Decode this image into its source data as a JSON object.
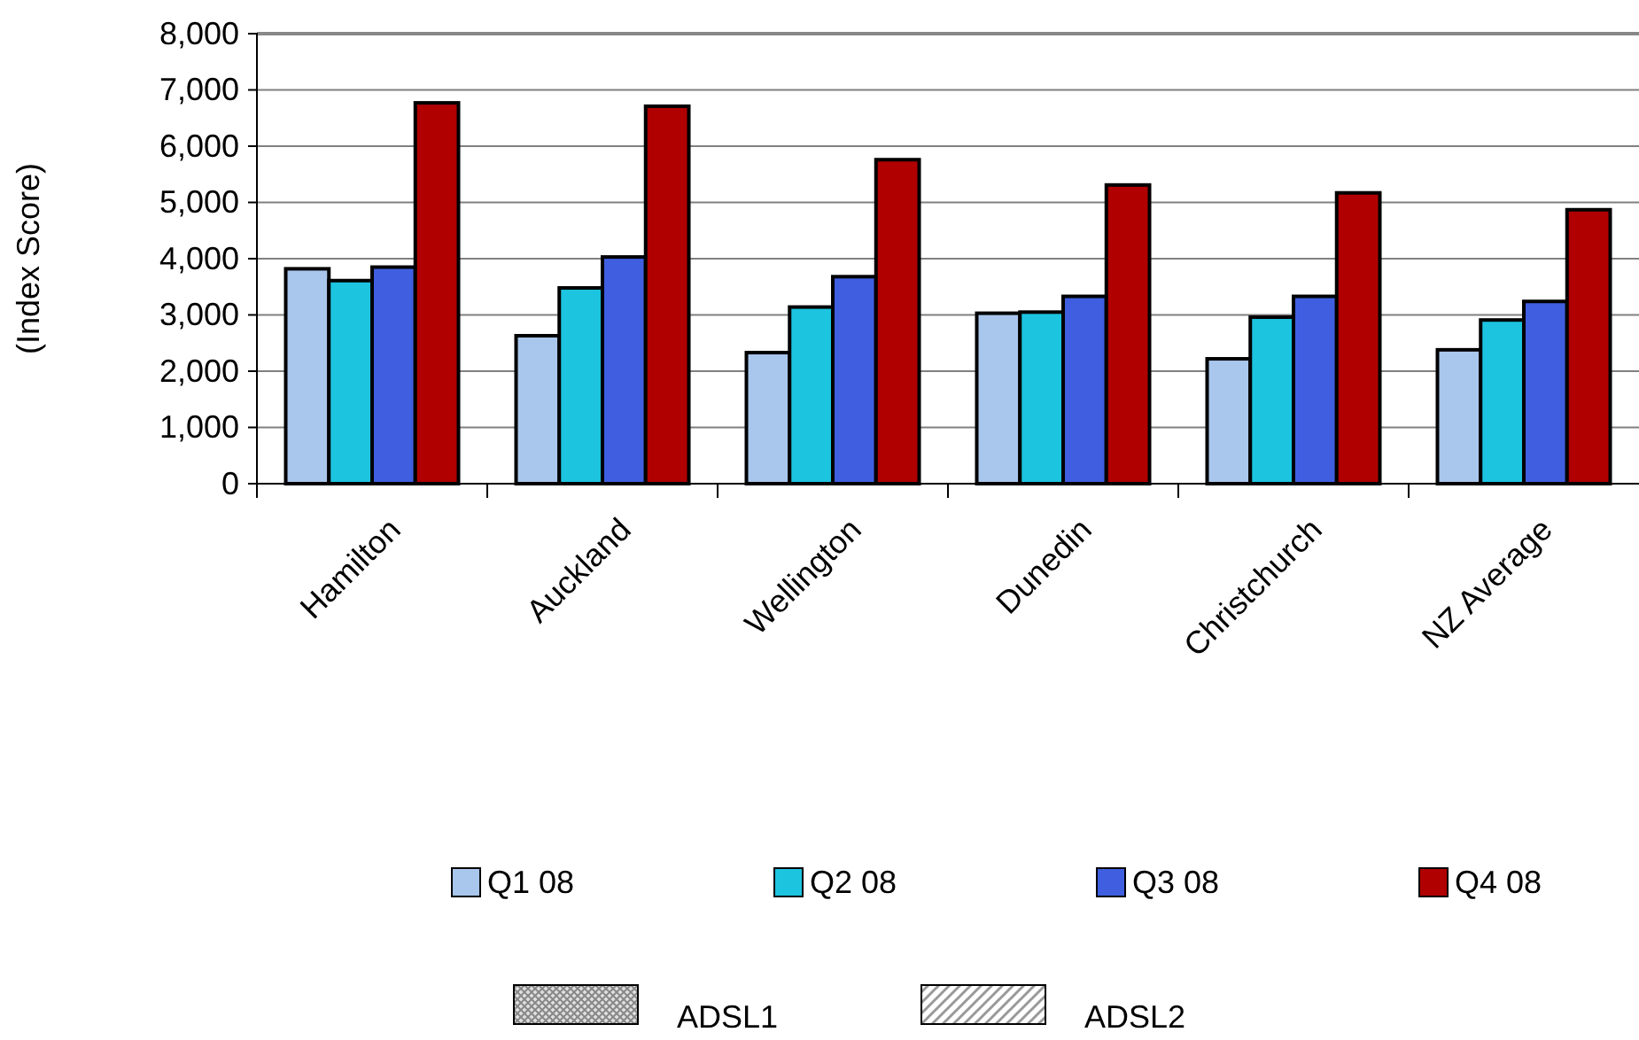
{
  "chart_data": {
    "type": "bar",
    "ylabel": "(Index Score)",
    "categories": [
      "Hamilton",
      "Auckland",
      "Wellington",
      "Dunedin",
      "Christchurch",
      "NZ Average"
    ],
    "series": [
      {
        "name": "Q1 08",
        "color": "#a9c6ec",
        "values": [
          3820,
          2630,
          2330,
          3030,
          2220,
          2380
        ]
      },
      {
        "name": "Q2 08",
        "color": "#1cc4e0",
        "values": [
          3610,
          3480,
          3140,
          3050,
          2960,
          2910
        ]
      },
      {
        "name": "Q3 08",
        "color": "#3f5fe0",
        "values": [
          3850,
          4030,
          3680,
          3330,
          3330,
          3240
        ]
      },
      {
        "name": "Q4 08",
        "color": "#b00000",
        "values": [
          6770,
          6710,
          5760,
          5310,
          5170,
          4870
        ]
      }
    ],
    "ylim": [
      0,
      8000
    ],
    "yticks": [
      {
        "value": 0,
        "label": "0"
      },
      {
        "value": 1000,
        "label": "1,000"
      },
      {
        "value": 2000,
        "label": "2,000"
      },
      {
        "value": 3000,
        "label": "3,000"
      },
      {
        "value": 4000,
        "label": "4,000"
      },
      {
        "value": 5000,
        "label": "5,000"
      },
      {
        "value": 6000,
        "label": "6,000"
      },
      {
        "value": 7000,
        "label": "7,000"
      },
      {
        "value": 8000,
        "label": "8,000"
      }
    ],
    "grid": "y",
    "legend": "bottom",
    "annotations": [
      "ADSL1",
      "ADSL2"
    ]
  }
}
